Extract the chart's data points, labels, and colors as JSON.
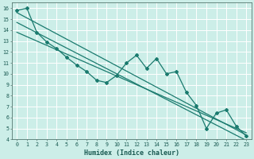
{
  "xlabel": "Humidex (Indice chaleur)",
  "bg_color": "#cceee8",
  "line_color": "#1a7a6e",
  "grid_color": "#ffffff",
  "xlim": [
    -0.5,
    23.5
  ],
  "ylim": [
    4,
    16.5
  ],
  "xticks": [
    0,
    1,
    2,
    3,
    4,
    5,
    6,
    7,
    8,
    9,
    10,
    11,
    12,
    13,
    14,
    15,
    16,
    17,
    18,
    19,
    20,
    21,
    22,
    23
  ],
  "yticks": [
    4,
    5,
    6,
    7,
    8,
    9,
    10,
    11,
    12,
    13,
    14,
    15,
    16
  ],
  "series1_x": [
    0,
    1,
    2,
    3,
    4,
    5,
    6,
    7,
    8,
    9,
    10,
    11,
    12,
    13,
    14,
    15,
    16,
    17,
    18,
    19,
    20,
    21,
    22,
    23
  ],
  "series1_y": [
    15.8,
    16.0,
    13.8,
    12.9,
    12.3,
    11.5,
    10.8,
    10.2,
    9.4,
    9.2,
    9.85,
    11.0,
    11.7,
    10.5,
    11.4,
    10.0,
    10.2,
    8.3,
    7.1,
    5.0,
    6.4,
    6.7,
    5.2,
    4.3
  ],
  "line2_x": [
    0,
    23
  ],
  "line2_y": [
    15.6,
    4.4
  ],
  "line3_x": [
    0,
    23
  ],
  "line3_y": [
    13.8,
    4.6
  ],
  "line4_x": [
    0,
    23
  ],
  "line4_y": [
    14.7,
    3.9
  ]
}
